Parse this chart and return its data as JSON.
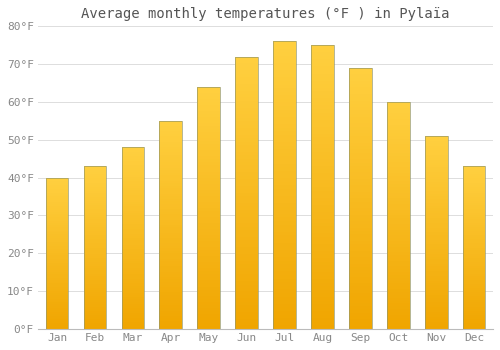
{
  "months": [
    "Jan",
    "Feb",
    "Mar",
    "Apr",
    "May",
    "Jun",
    "Jul",
    "Aug",
    "Sep",
    "Oct",
    "Nov",
    "Dec"
  ],
  "values": [
    40,
    43,
    48,
    55,
    64,
    72,
    76,
    75,
    69,
    60,
    51,
    43
  ],
  "title": "Average monthly temperatures (°F ) in Pylaïa",
  "ylim": [
    0,
    80
  ],
  "yticks": [
    0,
    10,
    20,
    30,
    40,
    50,
    60,
    70,
    80
  ],
  "ytick_labels": [
    "0°F",
    "10°F",
    "20°F",
    "30°F",
    "40°F",
    "50°F",
    "60°F",
    "70°F",
    "80°F"
  ],
  "bar_color_bottom": "#F0A500",
  "bar_color_top": "#FFD040",
  "bar_edge_color": "#999966",
  "background_color": "#ffffff",
  "grid_color": "#dddddd",
  "title_fontsize": 10,
  "tick_fontsize": 8,
  "bar_width": 0.6
}
